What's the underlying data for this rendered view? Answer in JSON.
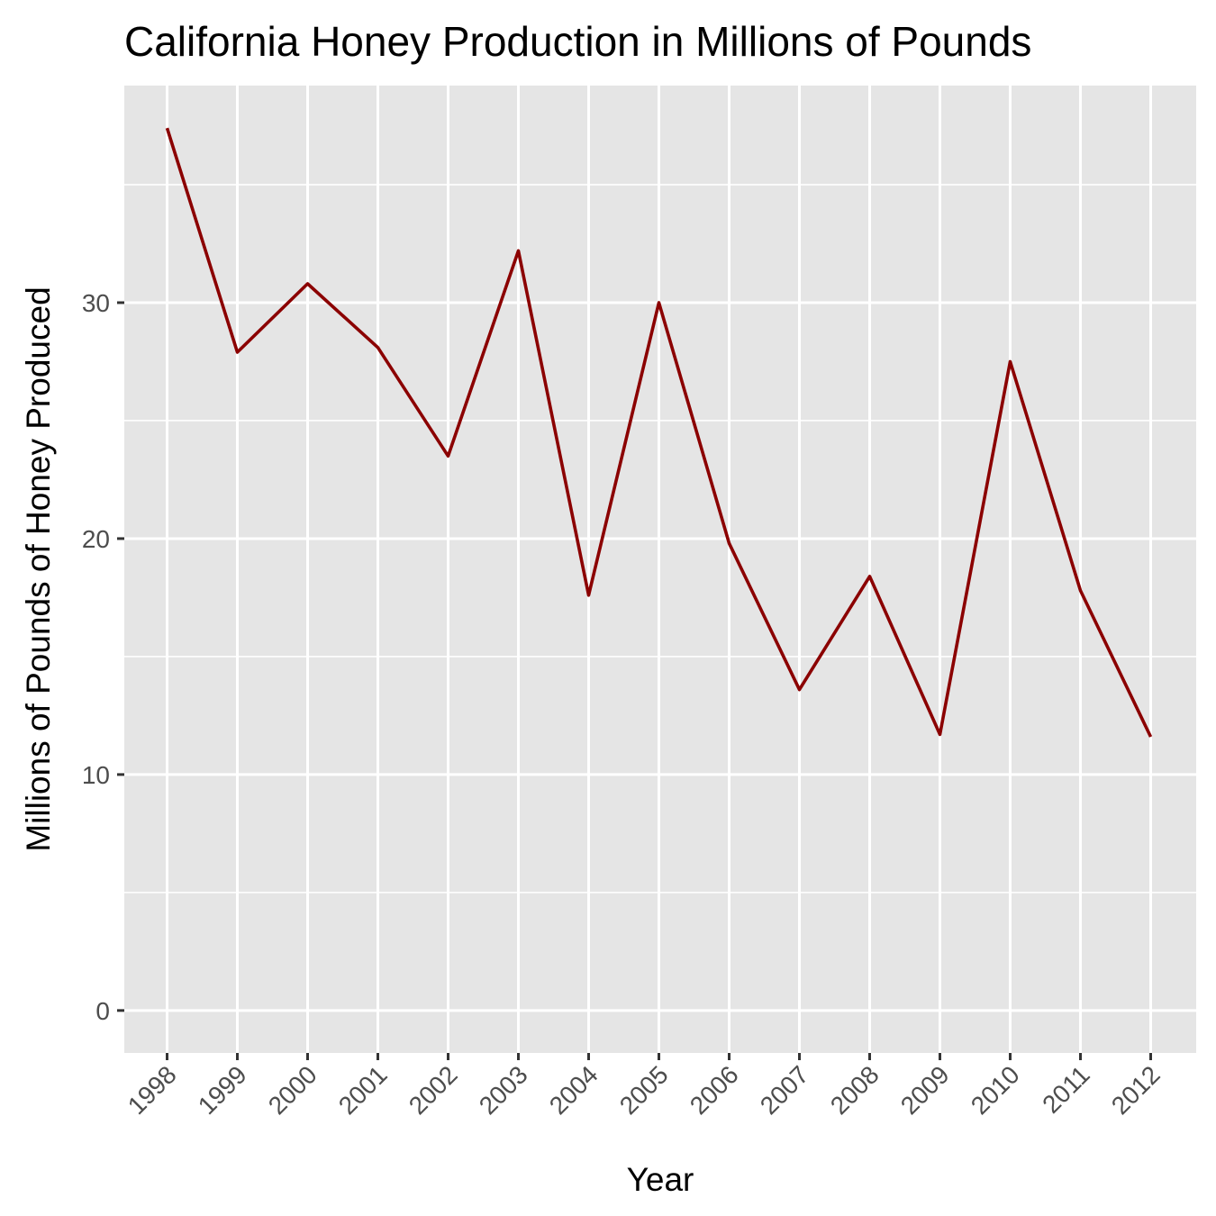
{
  "chart_data": {
    "type": "line",
    "title": "California Honey Production in Millions of Pounds",
    "xlabel": "Year",
    "ylabel": "Millions of Pounds of Honey Produced",
    "categories": [
      "1998",
      "1999",
      "2000",
      "2001",
      "2002",
      "2003",
      "2004",
      "2005",
      "2006",
      "2007",
      "2008",
      "2009",
      "2010",
      "2011",
      "2012"
    ],
    "series": [
      {
        "values": [
          37.4,
          27.9,
          30.8,
          28.1,
          23.5,
          32.2,
          17.6,
          30.0,
          19.8,
          13.6,
          18.4,
          11.7,
          27.5,
          17.8,
          11.6
        ]
      }
    ],
    "yticks": [
      0,
      10,
      20,
      30
    ],
    "ylim": [
      -1.8,
      39.2
    ],
    "grid": true,
    "colors": {
      "line": "#8b0000",
      "panel_background": "#e5e5e5",
      "grid": "#ffffff",
      "tick_label": "#4d4d4d"
    }
  }
}
